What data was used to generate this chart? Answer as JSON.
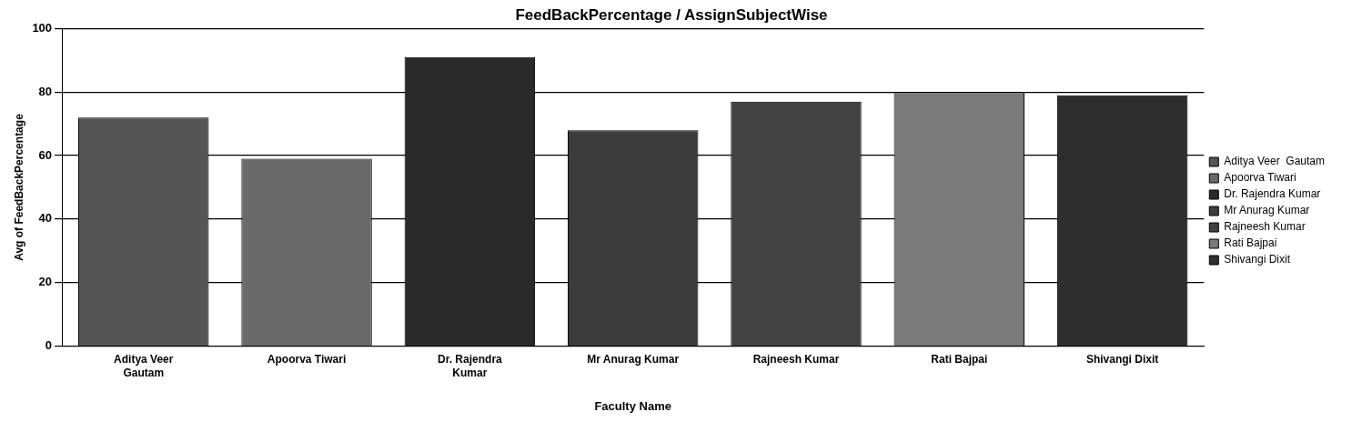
{
  "chart_data": {
    "type": "bar",
    "title": "FeedBackPercentage / AssignSubjectWise",
    "xlabel": "Faculty Name",
    "ylabel": "Avg of FeedBackPercentage",
    "categories": [
      "Aditya Veer Gautam",
      "Apoorva Tiwari",
      "Dr. Rajendra Kumar",
      "Mr Anurag Kumar",
      "Rajneesh Kumar",
      "Rati Bajpai",
      "Shivangi Dixit"
    ],
    "series": [
      {
        "name": "Aditya Veer  Gautam",
        "color": "#555555",
        "values": [
          72,
          null,
          null,
          null,
          null,
          null,
          null
        ]
      },
      {
        "name": "Apoorva Tiwari",
        "color": "#6a6a6a",
        "values": [
          null,
          59,
          null,
          null,
          null,
          null,
          null
        ]
      },
      {
        "name": "Dr. Rajendra Kumar",
        "color": "#2a2a2a",
        "values": [
          null,
          null,
          91,
          null,
          null,
          null,
          null
        ]
      },
      {
        "name": "Mr Anurag Kumar",
        "color": "#3c3c3c",
        "values": [
          null,
          null,
          null,
          68,
          null,
          null,
          null
        ]
      },
      {
        "name": "Rajneesh Kumar",
        "color": "#424242",
        "values": [
          null,
          null,
          null,
          null,
          77,
          null,
          null
        ]
      },
      {
        "name": "Rati Bajpai",
        "color": "#7a7a7a",
        "values": [
          null,
          null,
          null,
          null,
          null,
          80,
          null
        ]
      },
      {
        "name": "Shivangi Dixit",
        "color": "#2e2e2e",
        "values": [
          null,
          null,
          null,
          null,
          null,
          null,
          79
        ]
      }
    ],
    "ylim": [
      0,
      100
    ],
    "yticks": [
      0,
      20,
      40,
      60,
      80,
      100
    ],
    "grid": "y",
    "legend": "right"
  }
}
